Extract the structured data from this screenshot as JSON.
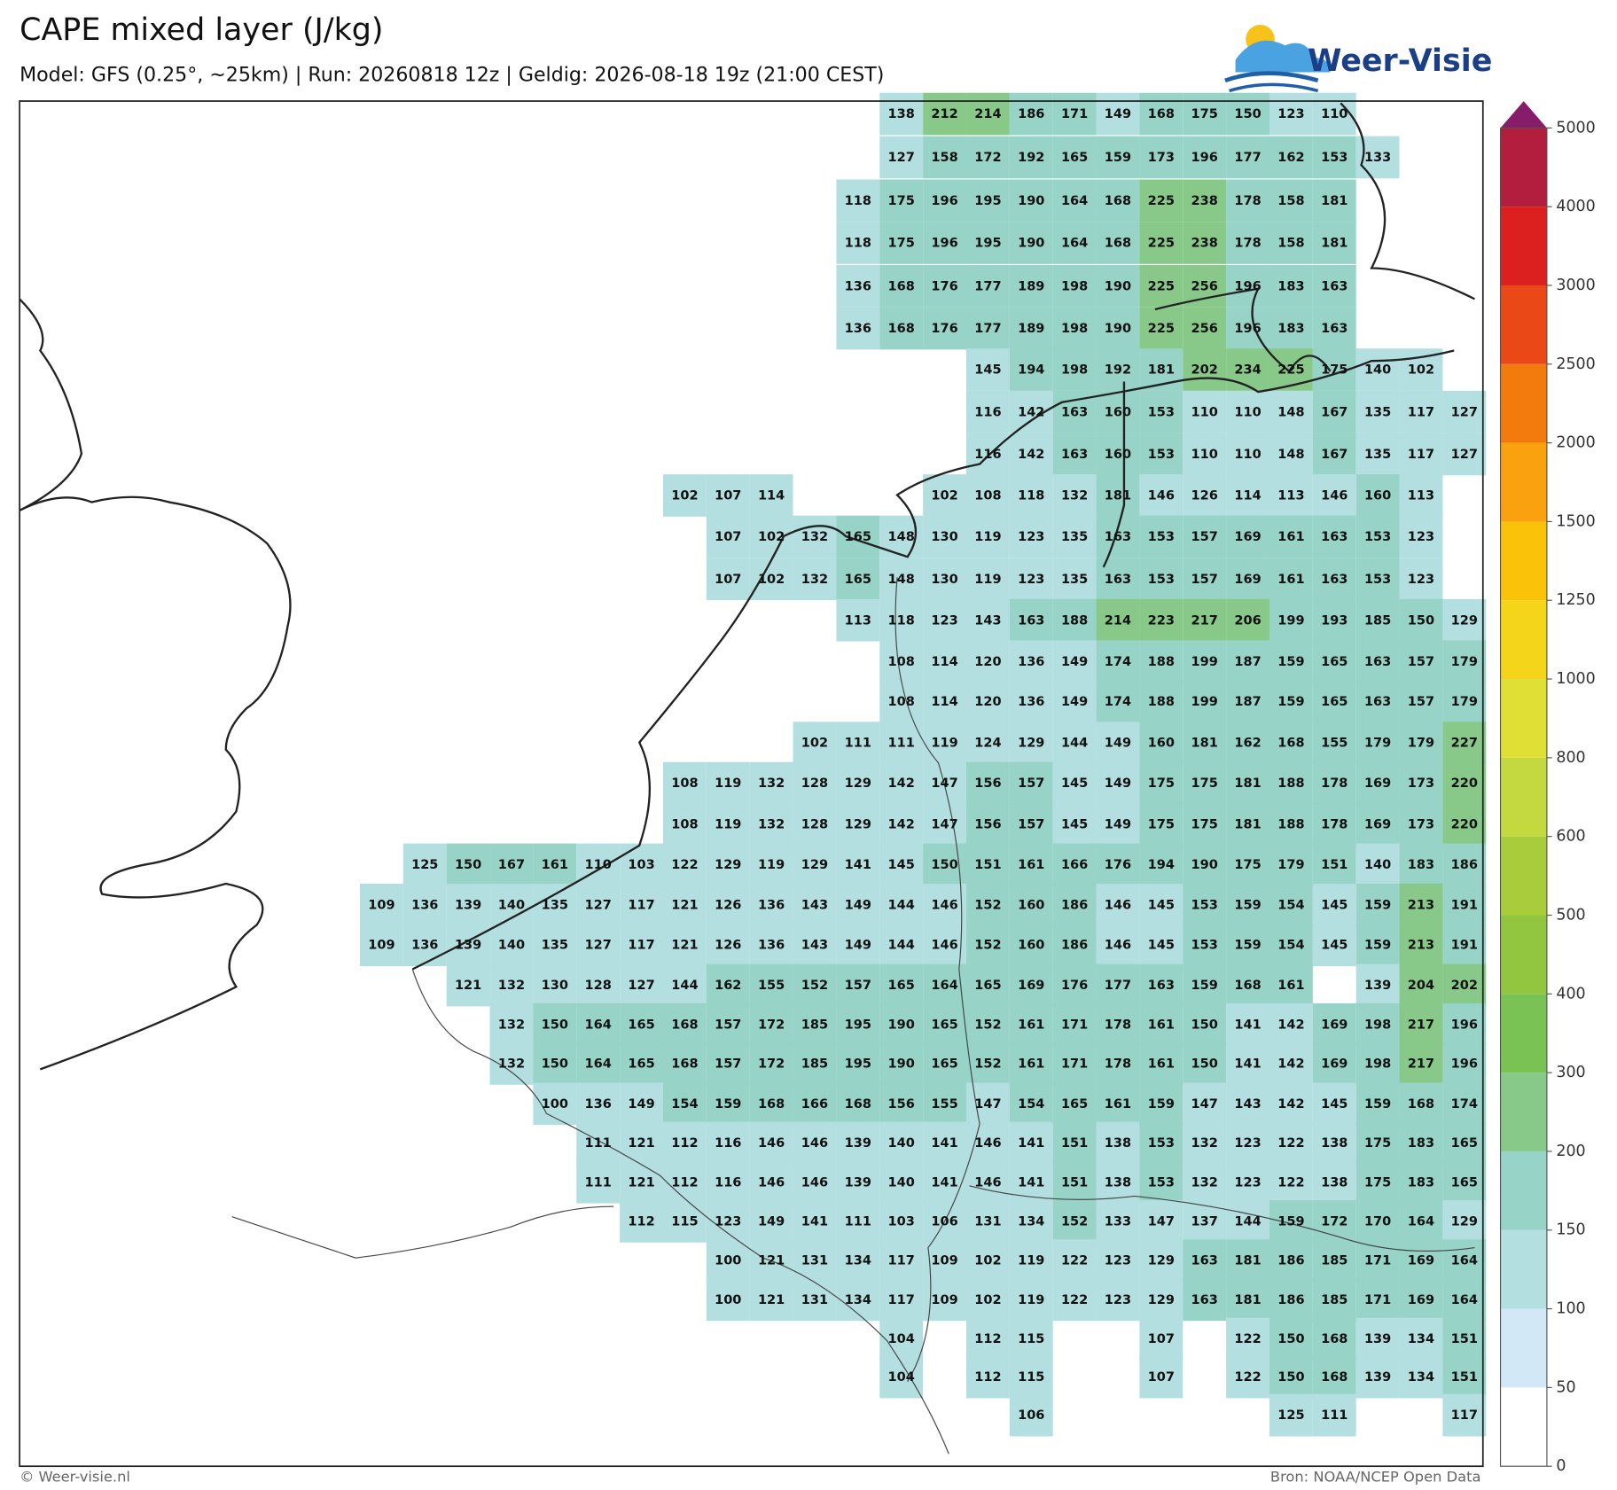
{
  "title": "CAPE mixed layer (J/kg)",
  "subtitle": "Model: GFS (0.25°, ~25km)  |  Run: 20260818 12z  |  Geldig: 2026-08-18 19z (21:00 CEST)",
  "logo": "Weer-Visie",
  "footer_left": "© Weer-visie.nl",
  "footer_right": "Bron: NOAA/NCEP Open Data",
  "colorbar": {
    "ticks": [
      0,
      50,
      100,
      150,
      200,
      300,
      400,
      500,
      600,
      800,
      1000,
      1250,
      1500,
      2000,
      2500,
      3000,
      4000,
      5000
    ],
    "colors": [
      "#ffffff",
      "#d2e8f6",
      "#b3dfe0",
      "#97d3c6",
      "#88c98a",
      "#7bc255",
      "#92c640",
      "#a8cc3c",
      "#c4d93f",
      "#e0df36",
      "#f5d519",
      "#fbc20a",
      "#f9a10f",
      "#f37a0c",
      "#ea4917",
      "#dc1f1f",
      "#b31d3e"
    ],
    "extend_color": "#861c6a"
  },
  "grid": {
    "rows": [
      [
        null,
        null,
        null,
        null,
        null,
        null,
        null,
        null,
        null,
        null,
        null,
        null,
        138,
        212,
        214,
        186,
        171,
        149,
        168,
        175,
        150,
        123,
        110,
        null,
        null,
        null
      ],
      [
        null,
        null,
        null,
        null,
        null,
        null,
        null,
        null,
        null,
        null,
        null,
        null,
        127,
        158,
        172,
        192,
        165,
        159,
        173,
        196,
        177,
        162,
        153,
        133,
        null,
        null
      ],
      [
        null,
        null,
        null,
        null,
        null,
        null,
        null,
        null,
        null,
        null,
        null,
        118,
        175,
        196,
        195,
        190,
        164,
        168,
        225,
        238,
        178,
        158,
        181,
        null,
        null,
        null
      ],
      [
        null,
        null,
        null,
        null,
        null,
        null,
        null,
        null,
        null,
        null,
        null,
        118,
        175,
        196,
        195,
        190,
        164,
        168,
        225,
        238,
        178,
        158,
        181,
        null,
        null,
        null
      ],
      [
        null,
        null,
        null,
        null,
        null,
        null,
        null,
        null,
        null,
        null,
        null,
        136,
        168,
        176,
        177,
        189,
        198,
        190,
        225,
        256,
        196,
        183,
        163,
        null,
        null,
        null
      ],
      [
        null,
        null,
        null,
        null,
        null,
        null,
        null,
        null,
        null,
        null,
        null,
        136,
        168,
        176,
        177,
        189,
        198,
        190,
        225,
        256,
        196,
        183,
        163,
        null,
        null,
        null
      ],
      [
        null,
        null,
        null,
        null,
        null,
        null,
        null,
        null,
        null,
        null,
        null,
        null,
        null,
        null,
        145,
        194,
        198,
        192,
        181,
        202,
        234,
        225,
        175,
        140,
        102,
        null
      ],
      [
        null,
        null,
        null,
        null,
        null,
        null,
        null,
        null,
        null,
        null,
        null,
        null,
        null,
        null,
        116,
        142,
        163,
        160,
        153,
        110,
        110,
        148,
        167,
        135,
        117,
        127
      ],
      [
        null,
        null,
        null,
        null,
        null,
        null,
        null,
        null,
        null,
        null,
        null,
        null,
        null,
        null,
        116,
        142,
        163,
        160,
        153,
        110,
        110,
        148,
        167,
        135,
        117,
        127
      ],
      [
        null,
        null,
        null,
        null,
        null,
        null,
        null,
        102,
        107,
        114,
        null,
        null,
        null,
        102,
        108,
        118,
        132,
        181,
        146,
        126,
        114,
        113,
        146,
        160,
        113,
        null
      ],
      [
        null,
        null,
        null,
        null,
        null,
        null,
        null,
        null,
        107,
        102,
        132,
        165,
        148,
        130,
        119,
        123,
        135,
        163,
        153,
        157,
        169,
        161,
        163,
        153,
        123,
        null
      ],
      [
        null,
        null,
        null,
        null,
        null,
        null,
        null,
        null,
        107,
        102,
        132,
        165,
        148,
        130,
        119,
        123,
        135,
        163,
        153,
        157,
        169,
        161,
        163,
        153,
        123,
        null
      ],
      [
        null,
        null,
        null,
        null,
        null,
        null,
        null,
        null,
        null,
        null,
        null,
        113,
        118,
        123,
        143,
        163,
        188,
        214,
        223,
        217,
        206,
        199,
        193,
        185,
        150,
        129
      ],
      [
        null,
        null,
        null,
        null,
        null,
        null,
        null,
        null,
        null,
        null,
        null,
        null,
        108,
        114,
        120,
        136,
        149,
        174,
        188,
        199,
        187,
        159,
        165,
        163,
        157,
        179
      ],
      [
        null,
        null,
        null,
        null,
        null,
        null,
        null,
        null,
        null,
        null,
        null,
        null,
        108,
        114,
        120,
        136,
        149,
        174,
        188,
        199,
        187,
        159,
        165,
        163,
        157,
        179
      ],
      [
        null,
        null,
        null,
        null,
        null,
        null,
        null,
        null,
        null,
        null,
        102,
        111,
        111,
        119,
        124,
        129,
        144,
        149,
        160,
        181,
        162,
        168,
        155,
        179,
        179,
        227
      ],
      [
        null,
        null,
        null,
        null,
        null,
        null,
        null,
        108,
        119,
        132,
        128,
        129,
        142,
        147,
        156,
        157,
        145,
        149,
        175,
        175,
        181,
        188,
        178,
        169,
        173,
        220
      ],
      [
        null,
        null,
        null,
        null,
        null,
        null,
        null,
        108,
        119,
        132,
        128,
        129,
        142,
        147,
        156,
        157,
        145,
        149,
        175,
        175,
        181,
        188,
        178,
        169,
        173,
        220
      ],
      [
        null,
        125,
        150,
        167,
        161,
        110,
        103,
        122,
        129,
        119,
        129,
        141,
        145,
        150,
        151,
        161,
        166,
        176,
        194,
        190,
        175,
        179,
        151,
        140,
        183,
        186
      ],
      [
        109,
        136,
        139,
        140,
        135,
        127,
        117,
        121,
        126,
        136,
        143,
        149,
        144,
        146,
        152,
        160,
        186,
        146,
        145,
        153,
        159,
        154,
        145,
        159,
        213,
        191
      ],
      [
        109,
        136,
        139,
        140,
        135,
        127,
        117,
        121,
        126,
        136,
        143,
        149,
        144,
        146,
        152,
        160,
        186,
        146,
        145,
        153,
        159,
        154,
        145,
        159,
        213,
        191
      ],
      [
        null,
        null,
        121,
        132,
        130,
        128,
        127,
        144,
        162,
        155,
        152,
        157,
        165,
        164,
        165,
        169,
        176,
        177,
        163,
        159,
        168,
        161,
        null,
        139,
        204,
        202
      ],
      [
        null,
        null,
        null,
        132,
        150,
        164,
        165,
        168,
        157,
        172,
        185,
        195,
        190,
        165,
        152,
        161,
        171,
        178,
        161,
        150,
        141,
        142,
        169,
        198,
        217,
        196
      ],
      [
        null,
        null,
        null,
        132,
        150,
        164,
        165,
        168,
        157,
        172,
        185,
        195,
        190,
        165,
        152,
        161,
        171,
        178,
        161,
        150,
        141,
        142,
        169,
        198,
        217,
        196
      ],
      [
        null,
        null,
        null,
        null,
        100,
        136,
        149,
        154,
        159,
        168,
        166,
        168,
        156,
        155,
        147,
        154,
        165,
        161,
        159,
        147,
        143,
        142,
        145,
        159,
        168,
        174
      ],
      [
        null,
        null,
        null,
        null,
        null,
        111,
        121,
        112,
        116,
        146,
        146,
        139,
        140,
        141,
        146,
        141,
        151,
        138,
        153,
        132,
        123,
        122,
        138,
        175,
        183,
        165
      ],
      [
        null,
        null,
        null,
        null,
        null,
        111,
        121,
        112,
        116,
        146,
        146,
        139,
        140,
        141,
        146,
        141,
        151,
        138,
        153,
        132,
        123,
        122,
        138,
        175,
        183,
        165
      ],
      [
        null,
        null,
        null,
        null,
        null,
        null,
        112,
        115,
        123,
        149,
        141,
        111,
        103,
        106,
        131,
        134,
        152,
        133,
        147,
        137,
        144,
        159,
        172,
        170,
        164,
        129
      ],
      [
        null,
        null,
        null,
        null,
        null,
        null,
        null,
        null,
        100,
        121,
        131,
        134,
        117,
        109,
        102,
        119,
        122,
        123,
        129,
        163,
        181,
        186,
        185,
        171,
        169,
        164
      ],
      [
        null,
        null,
        null,
        null,
        null,
        null,
        null,
        null,
        100,
        121,
        131,
        134,
        117,
        109,
        102,
        119,
        122,
        123,
        129,
        163,
        181,
        186,
        185,
        171,
        169,
        164
      ],
      [
        null,
        null,
        null,
        null,
        null,
        null,
        null,
        null,
        null,
        null,
        null,
        null,
        104,
        null,
        112,
        115,
        null,
        null,
        107,
        null,
        122,
        150,
        168,
        139,
        134,
        151
      ],
      [
        null,
        null,
        null,
        null,
        null,
        null,
        null,
        null,
        null,
        null,
        null,
        null,
        104,
        null,
        112,
        115,
        null,
        null,
        107,
        null,
        122,
        150,
        168,
        139,
        134,
        151
      ],
      [
        null,
        null,
        null,
        null,
        null,
        null,
        null,
        null,
        null,
        null,
        null,
        null,
        null,
        null,
        null,
        106,
        null,
        null,
        null,
        null,
        null,
        125,
        111,
        null,
        null,
        117
      ]
    ]
  }
}
